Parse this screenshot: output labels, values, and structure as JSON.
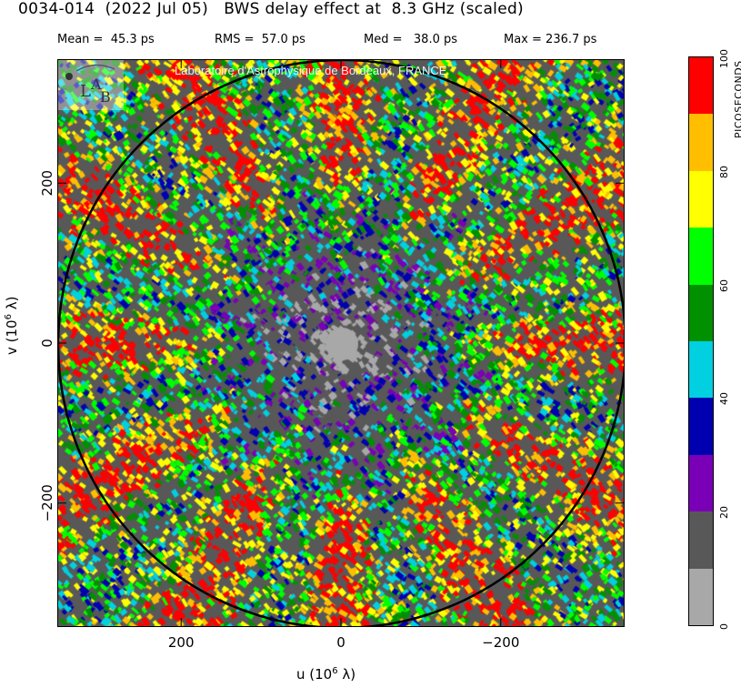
{
  "title": {
    "source": "0034-014",
    "date": "(2022 Jul 05)",
    "description": "BWS delay effect at  8.3 GHz (scaled)"
  },
  "stats": {
    "mean_label": "Mean =",
    "mean_value": "45.3 ps",
    "rms_label": "RMS =",
    "rms_value": "57.0 ps",
    "med_label": "Med =",
    "med_value": "38.0 ps",
    "max_label": "Max =",
    "max_value": "236.7 ps"
  },
  "watermark": {
    "logo_text": "LAB",
    "credit": "Laboratoire d'Astrophysique de Bordeaux, FRANCE"
  },
  "axes": {
    "xlabel_prefix": "u  (10",
    "xlabel_exp": "6",
    "xlabel_suffix": " λ)",
    "ylabel_prefix": "v  (10",
    "ylabel_exp": "6",
    "ylabel_suffix": " λ)"
  },
  "colorbar": {
    "title": "PICOSECONDS",
    "ticks": [
      "0",
      "20",
      "40",
      "60",
      "80",
      "100"
    ]
  },
  "chart_data": {
    "type": "heatmap",
    "title": "BWS delay effect at 8.3 GHz (scaled)",
    "xlabel": "u (10^6 λ)",
    "ylabel": "v (10^6 λ)",
    "x_ticks": [
      200,
      0,
      -200
    ],
    "x_tick_labels": [
      "200",
      "0",
      "−200"
    ],
    "y_ticks": [
      200,
      0,
      -200
    ],
    "y_tick_labels": [
      "200",
      "0",
      "−200"
    ],
    "xlim": [
      355,
      -355
    ],
    "ylim": [
      -355,
      355
    ],
    "x_reversed": true,
    "uv_circle_radius": 355,
    "value_unit": "ps",
    "value_range": [
      0,
      100
    ],
    "colorbar_levels": [
      0,
      10,
      20,
      30,
      40,
      50,
      60,
      70,
      80,
      90,
      100
    ],
    "colorbar_colors": [
      "#a8a8a8",
      "#585858",
      "#7a00b8",
      "#0000b0",
      "#00d0e0",
      "#009000",
      "#00ff00",
      "#ffff00",
      "#ffbf00",
      "#ff0000"
    ],
    "statistics": {
      "mean": 45.3,
      "rms": 57.0,
      "median": 38.0,
      "max": 236.7
    },
    "grid": false
  }
}
